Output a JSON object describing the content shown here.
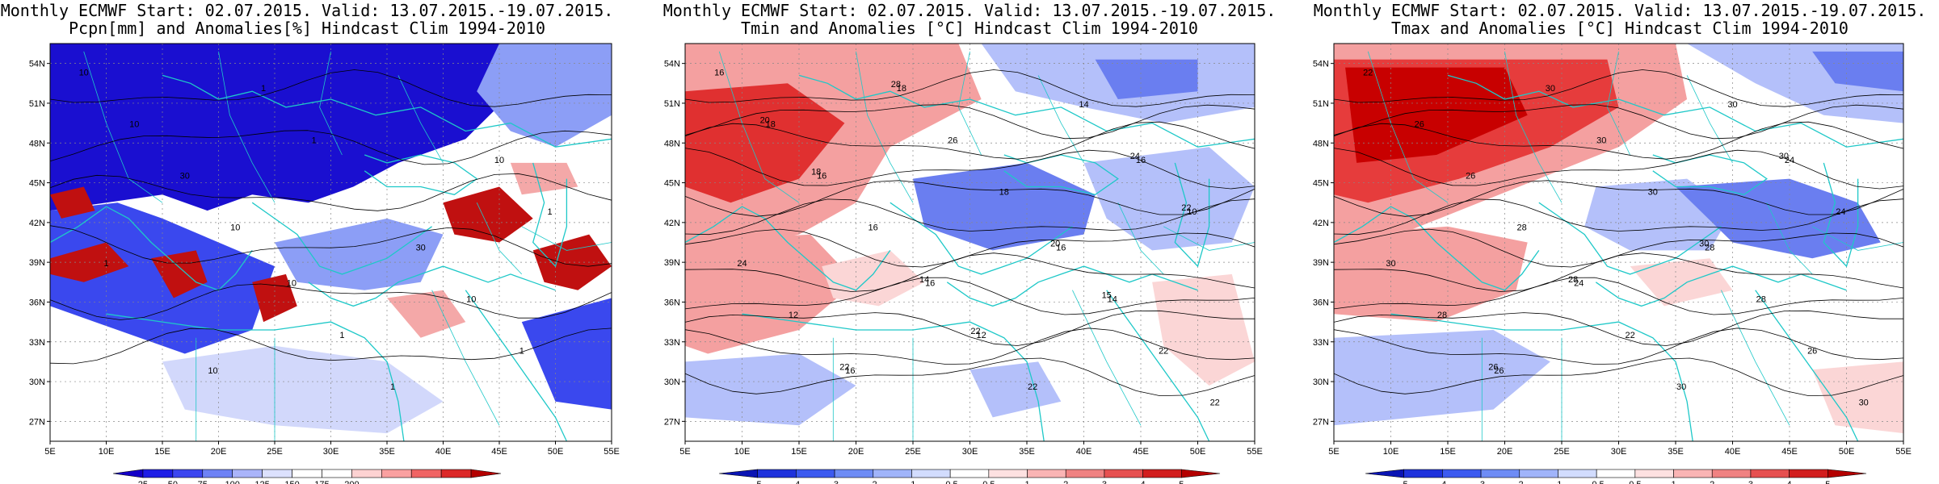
{
  "panels": [
    {
      "id": "precip",
      "title_line1": "Monthly ECMWF Start: 02.07.2015. Valid: 13.07.2015.-19.07.2015.",
      "title_line2": "Pcpn[mm] and Anomalies[%] Hindcast Clim 1994-2010",
      "lat_labels": [
        "54N",
        "51N",
        "48N",
        "45N",
        "42N",
        "39N",
        "36N",
        "33N",
        "30N",
        "27N"
      ],
      "lon_labels": [
        "5E",
        "10E",
        "15E",
        "20E",
        "25E",
        "30E",
        "35E",
        "40E",
        "45E",
        "50E",
        "55E"
      ],
      "colorbar_labels": [
        "25",
        "50",
        "75",
        "100",
        "125",
        "150",
        "175",
        "200"
      ],
      "colorbar_colors": [
        "#1400c8",
        "#1e1ee6",
        "#3c46f0",
        "#6e82f5",
        "#aab4fa",
        "#dce1fd",
        "#ffffff",
        "#ffffff",
        "#fdd2d2",
        "#faa0a0",
        "#f06464",
        "#dc2828",
        "#b40000"
      ],
      "contour_labels": [
        "10",
        "10",
        "10",
        "10",
        "30",
        "10",
        "1",
        "1",
        "1",
        "10",
        "30",
        "1",
        "1",
        "1",
        "1",
        "10"
      ],
      "palette": {
        "deep": "#1a0fd0",
        "mid": "#3a48ee",
        "light": "#8c9ef6",
        "pale": "#d2d8fb",
        "red": "#c01010",
        "pink": "#f4a8a8"
      }
    },
    {
      "id": "tmin",
      "title_line1": "Monthly ECMWF Start: 02.07.2015. Valid: 13.07.2015.-19.07.2015.",
      "title_line2": "Tmin and Anomalies [°C] Hindcast Clim 1994-2010",
      "lat_labels": [
        "54N",
        "51N",
        "48N",
        "45N",
        "42N",
        "39N",
        "36N",
        "33N",
        "30N",
        "27N"
      ],
      "lon_labels": [
        "5E",
        "10E",
        "15E",
        "20E",
        "25E",
        "30E",
        "35E",
        "40E",
        "45E",
        "50E",
        "55E"
      ],
      "colorbar_labels": [
        "-5",
        "-4",
        "-3",
        "-2",
        "-1",
        "-0.5",
        "0.5",
        "1",
        "2",
        "3",
        "4",
        "5"
      ],
      "colorbar_colors": [
        "#0a14b4",
        "#1e32dc",
        "#3c5af0",
        "#6e8cf5",
        "#a0b4fa",
        "#d2dcfd",
        "#ffffff",
        "#fde1e1",
        "#fab4b4",
        "#f08282",
        "#e65050",
        "#d21e1e",
        "#b40000"
      ],
      "contour_labels": [
        "16",
        "16",
        "16",
        "16",
        "16",
        "18",
        "12",
        "10",
        "18",
        "14",
        "16",
        "22",
        "24",
        "26",
        "22",
        "16",
        "14",
        "12",
        "18",
        "22",
        "14",
        "24",
        "22",
        "20",
        "20",
        "22",
        "22",
        "28",
        "15",
        "18"
      ],
      "palette": {
        "red": "#e03030",
        "lightred": "#f4a0a0",
        "pink": "#fbd6d6",
        "blue": "#6a7ef0",
        "lightblue": "#b4c0fa"
      }
    },
    {
      "id": "tmax",
      "title_line1": "Monthly ECMWF Start: 02.07.2015. Valid: 13.07.2015.-19.07.2015.",
      "title_line2": "Tmax and Anomalies [°C] Hindcast Clim 1994-2010",
      "lat_labels": [
        "54N",
        "51N",
        "48N",
        "45N",
        "42N",
        "39N",
        "36N",
        "33N",
        "30N",
        "27N"
      ],
      "lon_labels": [
        "5E",
        "10E",
        "15E",
        "20E",
        "25E",
        "30E",
        "35E",
        "40E",
        "45E",
        "50E",
        "55E"
      ],
      "colorbar_labels": [
        "-5",
        "-4",
        "-3",
        "-2",
        "-1",
        "-0.5",
        "0.5",
        "1",
        "2",
        "3",
        "4",
        "5"
      ],
      "colorbar_colors": [
        "#0a14b4",
        "#1e32dc",
        "#3c5af0",
        "#6e8cf5",
        "#a0b4fa",
        "#d2dcfd",
        "#ffffff",
        "#fde1e1",
        "#fab4b4",
        "#f08282",
        "#e65050",
        "#d21e1e",
        "#b40000"
      ],
      "contour_labels": [
        "22",
        "24",
        "24",
        "26",
        "28",
        "26",
        "22",
        "24",
        "30",
        "28",
        "26",
        "30",
        "30",
        "30",
        "26",
        "28",
        "30",
        "28",
        "30",
        "30",
        "28",
        "30",
        "26",
        "30"
      ],
      "palette": {
        "deepred": "#c80000",
        "red": "#e63c3c",
        "lightred": "#f4a0a0",
        "pink": "#fbd6d6",
        "blue": "#6a7ef0",
        "lightblue": "#b4c0fa"
      }
    }
  ]
}
